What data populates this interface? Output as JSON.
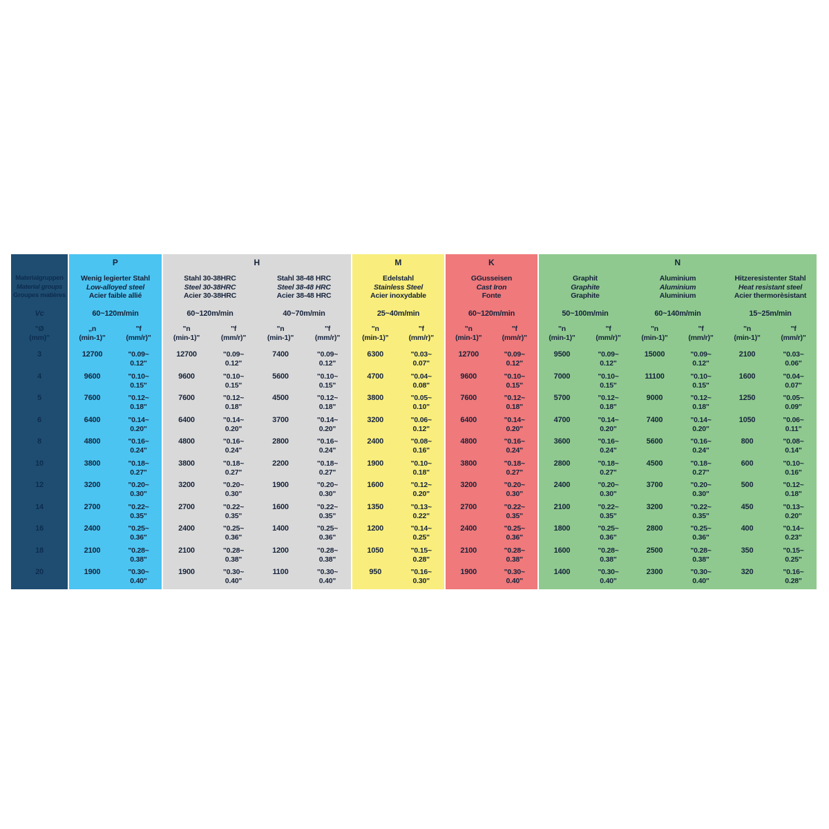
{
  "page": {
    "background": "#ffffff"
  },
  "label_col": {
    "color": "#1f4d72",
    "text_color": "#0c2c4e",
    "line1": "Materialgruppen",
    "line2": "Material groups",
    "line3": "Groupes matières",
    "vc": "Vc",
    "dia1": "\"Ø",
    "dia2": "(mm)\"",
    "diameters": [
      "3",
      "4",
      "5",
      "6",
      "8",
      "10",
      "12",
      "14",
      "16",
      "18",
      "20"
    ]
  },
  "groups": [
    {
      "letter": "P",
      "color": "#4cc4f1",
      "subcols": [
        {
          "name_de": "Wenig legierter Stahl",
          "name_en": "Low-alloyed steel",
          "name_fr": "Acier faible allié",
          "speed": "60~120m/min",
          "n_h1": "„n",
          "n_h2": "(min-1)\"",
          "f_h1": "\"f",
          "f_h2": "(mm/r)\"",
          "rows": [
            {
              "n": "12700",
              "f1": "\"0.09~",
              "f2": "0.12\""
            },
            {
              "n": "9600",
              "f1": "\"0.10~",
              "f2": "0.15\""
            },
            {
              "n": "7600",
              "f1": "\"0.12~",
              "f2": "0.18\""
            },
            {
              "n": "6400",
              "f1": "\"0.14~",
              "f2": "0.20\""
            },
            {
              "n": "4800",
              "f1": "\"0.16~",
              "f2": "0.24\""
            },
            {
              "n": "3800",
              "f1": "\"0.18~",
              "f2": "0.27\""
            },
            {
              "n": "3200",
              "f1": "\"0.20~",
              "f2": "0.30\""
            },
            {
              "n": "2700",
              "f1": "\"0.22~",
              "f2": "0.35\""
            },
            {
              "n": "2400",
              "f1": "\"0.25~",
              "f2": "0.36\""
            },
            {
              "n": "2100",
              "f1": "\"0.28~",
              "f2": "0.38\""
            },
            {
              "n": "1900",
              "f1": "\"0.30~",
              "f2": "0.40\""
            }
          ]
        }
      ]
    },
    {
      "letter": "H",
      "color": "#d9d9d9",
      "subcols": [
        {
          "name_de": "Stahl 30-38HRC",
          "name_en": "Steel 30-38HRC",
          "name_fr": "Acier 30-38HRC",
          "speed": "60~120m/min",
          "n_h1": "\"n",
          "n_h2": "(min-1)\"",
          "f_h1": "\"f",
          "f_h2": "(mm/r)\"",
          "rows": [
            {
              "n": "12700",
              "f1": "\"0.09~",
              "f2": "0.12\""
            },
            {
              "n": "9600",
              "f1": "\"0.10~",
              "f2": "0.15\""
            },
            {
              "n": "7600",
              "f1": "\"0.12~",
              "f2": "0.18\""
            },
            {
              "n": "6400",
              "f1": "\"0.14~",
              "f2": "0.20\""
            },
            {
              "n": "4800",
              "f1": "\"0.16~",
              "f2": "0.24\""
            },
            {
              "n": "3800",
              "f1": "\"0.18~",
              "f2": "0.27\""
            },
            {
              "n": "3200",
              "f1": "\"0.20~",
              "f2": "0.30\""
            },
            {
              "n": "2700",
              "f1": "\"0.22~",
              "f2": "0.35\""
            },
            {
              "n": "2400",
              "f1": "\"0.25~",
              "f2": "0.36\""
            },
            {
              "n": "2100",
              "f1": "\"0.28~",
              "f2": "0.38\""
            },
            {
              "n": "1900",
              "f1": "\"0.30~",
              "f2": "0.40\""
            }
          ]
        },
        {
          "name_de": "Stahl 38-48 HRC",
          "name_en": "Steel 38-48 HRC",
          "name_fr": "Acier 38-48 HRC",
          "speed": "40~70m/min",
          "n_h1": "\"n",
          "n_h2": "(min-1)\"",
          "f_h1": "\"f",
          "f_h2": "(mm/r)\"",
          "rows": [
            {
              "n": "7400",
              "f1": "\"0.09~",
              "f2": "0.12\""
            },
            {
              "n": "5600",
              "f1": "\"0.10~",
              "f2": "0.15\""
            },
            {
              "n": "4500",
              "f1": "\"0.12~",
              "f2": "0.18\""
            },
            {
              "n": "3700",
              "f1": "\"0.14~",
              "f2": "0.20\""
            },
            {
              "n": "2800",
              "f1": "\"0.16~",
              "f2": "0.24\""
            },
            {
              "n": "2200",
              "f1": "\"0.18~",
              "f2": "0.27\""
            },
            {
              "n": "1900",
              "f1": "\"0.20~",
              "f2": "0.30\""
            },
            {
              "n": "1600",
              "f1": "\"0.22~",
              "f2": "0.35\""
            },
            {
              "n": "1400",
              "f1": "\"0.25~",
              "f2": "0.36\""
            },
            {
              "n": "1200",
              "f1": "\"0.28~",
              "f2": "0.38\""
            },
            {
              "n": "1100",
              "f1": "\"0.30~",
              "f2": "0.40\""
            }
          ]
        }
      ]
    },
    {
      "letter": "M",
      "color": "#f9ee7d",
      "subcols": [
        {
          "name_de": "Edelstahl",
          "name_en": "Stainless Steel",
          "name_fr": "Acier inoxydable",
          "speed": "25~40m/min",
          "n_h1": "\"n",
          "n_h2": "(min-1)\"",
          "f_h1": "\"f",
          "f_h2": "(mm/r)\"",
          "rows": [
            {
              "n": "6300",
              "f1": "\"0.03~",
              "f2": "0.07\""
            },
            {
              "n": "4700",
              "f1": "\"0.04~",
              "f2": "0.08\""
            },
            {
              "n": "3800",
              "f1": "\"0.05~",
              "f2": "0.10\""
            },
            {
              "n": "3200",
              "f1": "\"0.06~",
              "f2": "0.12\""
            },
            {
              "n": "2400",
              "f1": "\"0.08~",
              "f2": "0.16\""
            },
            {
              "n": "1900",
              "f1": "\"0.10~",
              "f2": "0.18\""
            },
            {
              "n": "1600",
              "f1": "\"0.12~",
              "f2": "0.20\""
            },
            {
              "n": "1350",
              "f1": "\"0.13~",
              "f2": "0.22\""
            },
            {
              "n": "1200",
              "f1": "\"0.14~",
              "f2": "0.25\""
            },
            {
              "n": "1050",
              "f1": "\"0.15~",
              "f2": "0.28\""
            },
            {
              "n": "950",
              "f1": "\"0.16~",
              "f2": "0.30\""
            }
          ]
        }
      ]
    },
    {
      "letter": "K",
      "color": "#ef797b",
      "subcols": [
        {
          "name_de": "GGusseisen",
          "name_en": "Cast Iron",
          "name_fr": "Fonte",
          "speed": "60~120m/min",
          "n_h1": "\"n",
          "n_h2": "(min-1)\"",
          "f_h1": "\"f",
          "f_h2": "(mm/r)\"",
          "rows": [
            {
              "n": "12700",
              "f1": "\"0.09~",
              "f2": "0.12\""
            },
            {
              "n": "9600",
              "f1": "\"0.10~",
              "f2": "0.15\""
            },
            {
              "n": "7600",
              "f1": "\"0.12~",
              "f2": "0.18\""
            },
            {
              "n": "6400",
              "f1": "\"0.14~",
              "f2": "0.20\""
            },
            {
              "n": "4800",
              "f1": "\"0.16~",
              "f2": "0.24\""
            },
            {
              "n": "3800",
              "f1": "\"0.18~",
              "f2": "0.27\""
            },
            {
              "n": "3200",
              "f1": "\"0.20~",
              "f2": "0.30\""
            },
            {
              "n": "2700",
              "f1": "\"0.22~",
              "f2": "0.35\""
            },
            {
              "n": "2400",
              "f1": "\"0.25~",
              "f2": "0.36\""
            },
            {
              "n": "2100",
              "f1": "\"0.28~",
              "f2": "0.38\""
            },
            {
              "n": "1900",
              "f1": "\"0.30~",
              "f2": "0.40\""
            }
          ]
        }
      ]
    },
    {
      "letter": "N",
      "color": "#8fc98f",
      "subcols": [
        {
          "name_de": "Graphit",
          "name_en": "Graphite",
          "name_fr": "Graphite",
          "speed": "50~100m/min",
          "n_h1": "\"n",
          "n_h2": "(min-1)\"",
          "f_h1": "\"f",
          "f_h2": "(mm/r)\"",
          "rows": [
            {
              "n": "9500",
              "f1": "\"0.09~",
              "f2": "0.12\""
            },
            {
              "n": "7000",
              "f1": "\"0.10~",
              "f2": "0.15\""
            },
            {
              "n": "5700",
              "f1": "\"0.12~",
              "f2": "0.18\""
            },
            {
              "n": "4700",
              "f1": "\"0.14~",
              "f2": "0.20\""
            },
            {
              "n": "3600",
              "f1": "\"0.16~",
              "f2": "0.24\""
            },
            {
              "n": "2800",
              "f1": "\"0.18~",
              "f2": "0.27\""
            },
            {
              "n": "2400",
              "f1": "\"0.20~",
              "f2": "0.30\""
            },
            {
              "n": "2100",
              "f1": "\"0.22~",
              "f2": "0.35\""
            },
            {
              "n": "1800",
              "f1": "\"0.25~",
              "f2": "0.36\""
            },
            {
              "n": "1600",
              "f1": "\"0.28~",
              "f2": "0.38\""
            },
            {
              "n": "1400",
              "f1": "\"0.30~",
              "f2": "0.40\""
            }
          ]
        },
        {
          "name_de": "Aluminium",
          "name_en": "Aluminium",
          "name_fr": "Aluminium",
          "speed": "60~140m/min",
          "n_h1": "\"n",
          "n_h2": "(min-1)\"",
          "f_h1": "\"f",
          "f_h2": "(mm/r)\"",
          "rows": [
            {
              "n": "15000",
              "f1": "\"0.09~",
              "f2": "0.12\""
            },
            {
              "n": "11100",
              "f1": "\"0.10~",
              "f2": "0.15\""
            },
            {
              "n": "9000",
              "f1": "\"0.12~",
              "f2": "0.18\""
            },
            {
              "n": "7400",
              "f1": "\"0.14~",
              "f2": "0.20\""
            },
            {
              "n": "5600",
              "f1": "\"0.16~",
              "f2": "0.24\""
            },
            {
              "n": "4500",
              "f1": "\"0.18~",
              "f2": "0.27\""
            },
            {
              "n": "3700",
              "f1": "\"0.20~",
              "f2": "0.30\""
            },
            {
              "n": "3200",
              "f1": "\"0.22~",
              "f2": "0.35\""
            },
            {
              "n": "2800",
              "f1": "\"0.25~",
              "f2": "0.36\""
            },
            {
              "n": "2500",
              "f1": "\"0.28~",
              "f2": "0.38\""
            },
            {
              "n": "2300",
              "f1": "\"0.30~",
              "f2": "0.40\""
            }
          ]
        },
        {
          "name_de": "Hitzeresistenter Stahl",
          "name_en": "Heat resistant steel",
          "name_fr": "Acier thermorèsistant",
          "speed": "15~25m/min",
          "n_h1": "\"n",
          "n_h2": "(min-1)\"",
          "f_h1": "\"f",
          "f_h2": "(mm/r)\"",
          "rows": [
            {
              "n": "2100",
              "f1": "\"0.03~",
              "f2": "0.06\""
            },
            {
              "n": "1600",
              "f1": "\"0.04~",
              "f2": "0.07\""
            },
            {
              "n": "1250",
              "f1": "\"0.05~",
              "f2": "0.09\""
            },
            {
              "n": "1050",
              "f1": "\"0.06~",
              "f2": "0.11\""
            },
            {
              "n": "800",
              "f1": "\"0.08~",
              "f2": "0.14\""
            },
            {
              "n": "600",
              "f1": "\"0.10~",
              "f2": "0.16\""
            },
            {
              "n": "500",
              "f1": "\"0.12~",
              "f2": "0.18\""
            },
            {
              "n": "450",
              "f1": "\"0.13~",
              "f2": "0.20\""
            },
            {
              "n": "400",
              "f1": "\"0.14~",
              "f2": "0.23\""
            },
            {
              "n": "350",
              "f1": "\"0.15~",
              "f2": "0.25\""
            },
            {
              "n": "320",
              "f1": "\"0.16~",
              "f2": "0.28\""
            }
          ]
        }
      ]
    }
  ]
}
